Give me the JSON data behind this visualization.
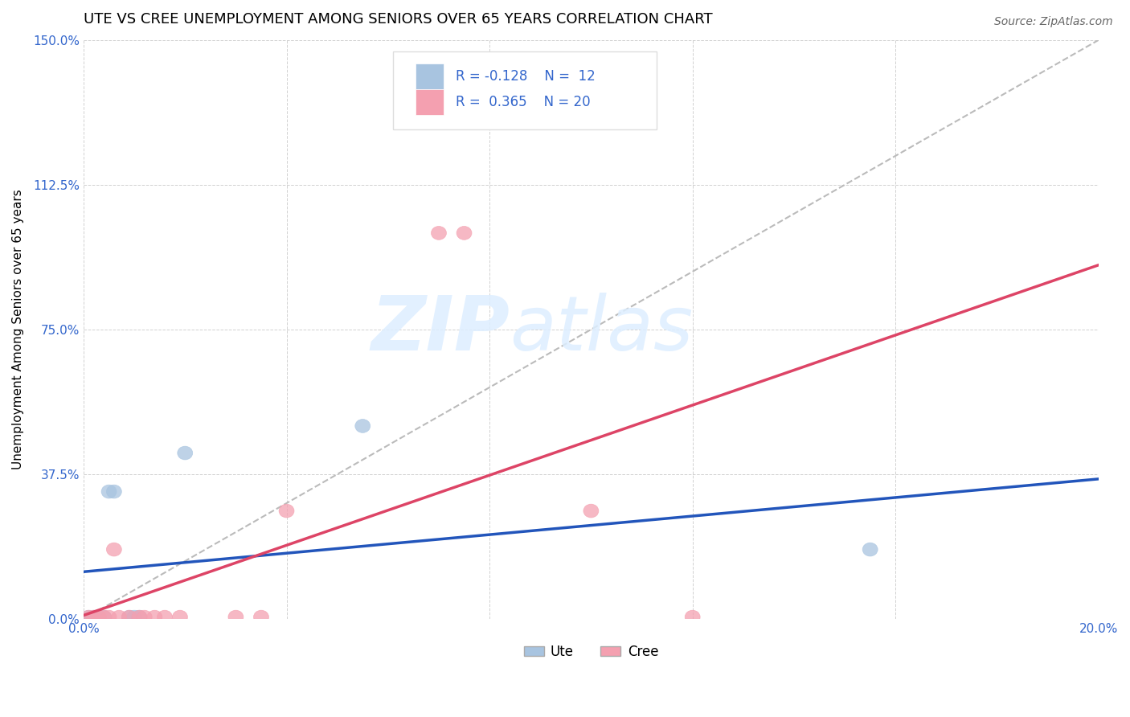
{
  "title": "UTE VS CREE UNEMPLOYMENT AMONG SENIORS OVER 65 YEARS CORRELATION CHART",
  "source": "Source: ZipAtlas.com",
  "ylabel": "Unemployment Among Seniors over 65 years",
  "xlim": [
    0.0,
    0.2
  ],
  "ylim": [
    0.0,
    1.5
  ],
  "xticks": [
    0.0,
    0.04,
    0.08,
    0.12,
    0.16,
    0.2
  ],
  "yticks": [
    0.0,
    0.375,
    0.75,
    1.125,
    1.5
  ],
  "ytick_labels": [
    "0.0%",
    "37.5%",
    "75.0%",
    "112.5%",
    "150.0%"
  ],
  "xtick_labels": [
    "0.0%",
    "",
    "",
    "",
    "",
    "20.0%"
  ],
  "ute_color": "#a8c4e0",
  "cree_color": "#f4a0b0",
  "ute_line_color": "#2255bb",
  "cree_line_color": "#dd4466",
  "diagonal_color": "#bbbbbb",
  "ute_R": -0.128,
  "ute_N": 12,
  "cree_R": 0.365,
  "cree_N": 20,
  "watermark_zip": "ZIP",
  "watermark_atlas": "atlas",
  "ute_points_x": [
    0.001,
    0.002,
    0.003,
    0.004,
    0.005,
    0.006,
    0.009,
    0.01,
    0.011,
    0.02,
    0.055,
    0.155
  ],
  "ute_points_y": [
    0.005,
    0.005,
    0.005,
    0.005,
    0.33,
    0.33,
    0.005,
    0.005,
    0.005,
    0.43,
    0.5,
    0.18
  ],
  "cree_points_x": [
    0.001,
    0.002,
    0.003,
    0.004,
    0.005,
    0.006,
    0.007,
    0.009,
    0.011,
    0.012,
    0.014,
    0.016,
    0.019,
    0.03,
    0.035,
    0.04,
    0.07,
    0.075,
    0.1,
    0.12
  ],
  "cree_points_y": [
    0.005,
    0.005,
    0.005,
    0.005,
    0.005,
    0.18,
    0.005,
    0.005,
    0.005,
    0.005,
    0.005,
    0.005,
    0.005,
    0.005,
    0.005,
    0.28,
    1.0,
    1.0,
    0.28,
    0.005
  ]
}
